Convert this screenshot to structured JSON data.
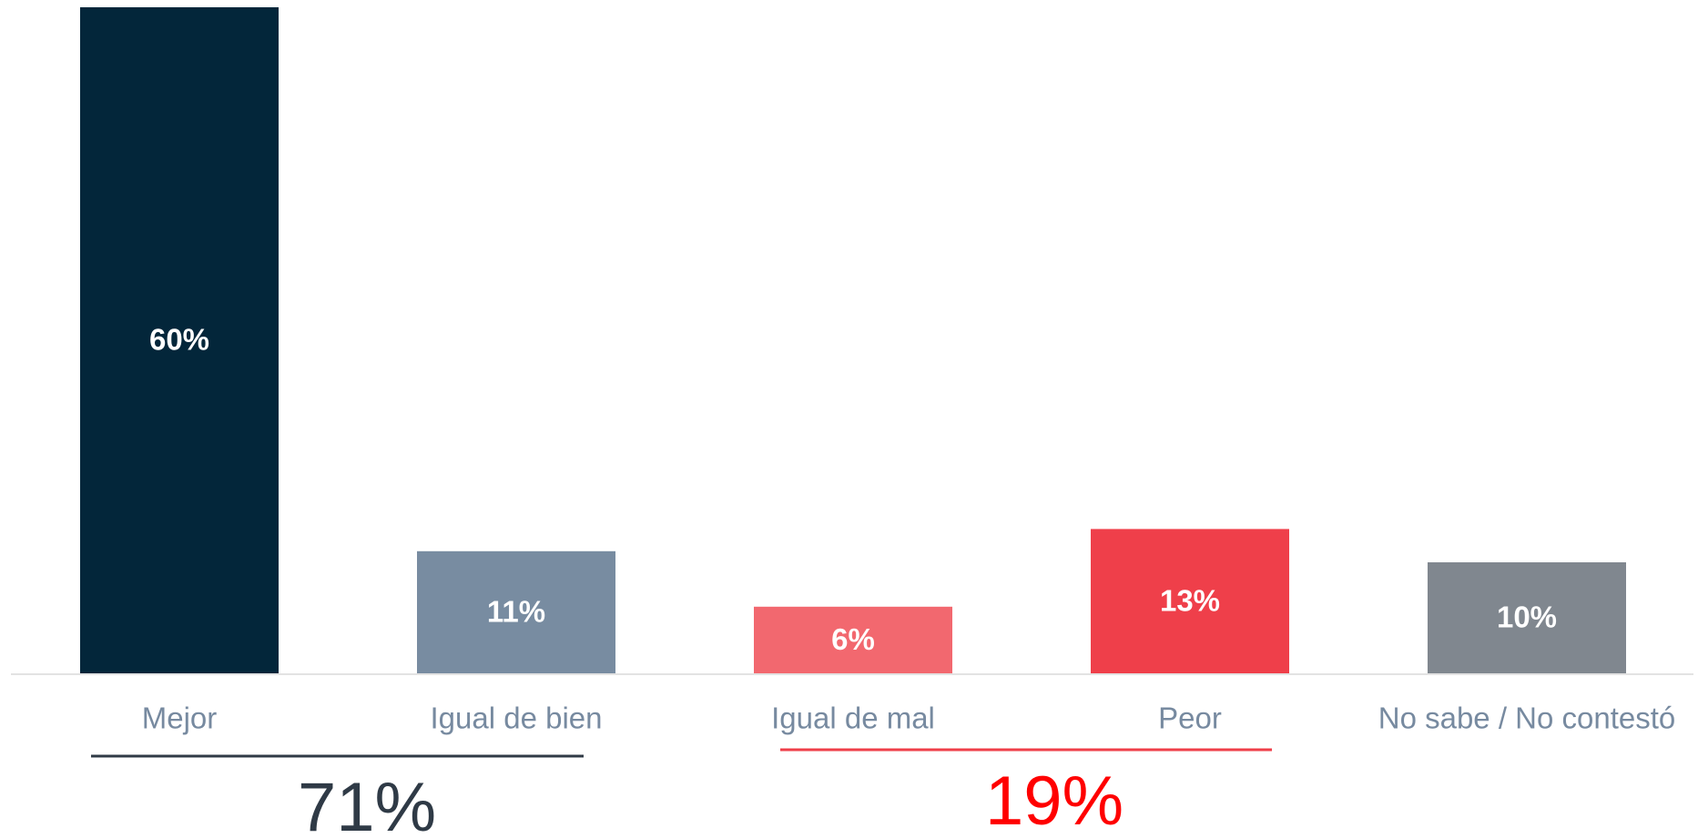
{
  "chart_data": {
    "type": "bar",
    "categories": [
      "Mejor",
      "Igual de bien",
      "Igual de mal",
      "Peor",
      "No sabe / No contestó"
    ],
    "values": [
      60,
      11,
      6,
      13,
      10
    ],
    "value_labels": [
      "60%",
      "11%",
      "6%",
      "13%",
      "10%"
    ],
    "colors": [
      "#03263a",
      "#788ca1",
      "#f2686f",
      "#ef3f4a",
      "#80878f"
    ],
    "ylim": [
      0,
      60
    ],
    "annotations": [
      {
        "text": "71%"
      },
      {
        "text": "19%"
      }
    ]
  }
}
